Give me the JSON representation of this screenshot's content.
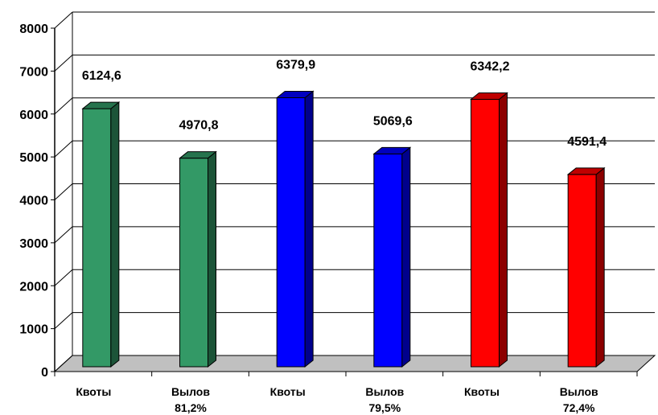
{
  "chart_data": {
    "type": "bar",
    "title": "",
    "xlabel": "",
    "ylabel": "",
    "ylim": [
      0,
      8000
    ],
    "yticks": [
      0,
      1000,
      2000,
      3000,
      4000,
      5000,
      6000,
      7000,
      8000
    ],
    "grid": true,
    "three_d": true,
    "bars": [
      {
        "label": "Квоты",
        "sublabel": "",
        "value": 6124.6,
        "value_label": "6124,6",
        "color": "#339966"
      },
      {
        "label": "Вылов",
        "sublabel": "81,2%",
        "value": 4970.8,
        "value_label": "4970,8",
        "color": "#339966"
      },
      {
        "label": "Квоты",
        "sublabel": "",
        "value": 6379.9,
        "value_label": "6379,9",
        "color": "#0000ff"
      },
      {
        "label": "Вылов",
        "sublabel": "79,5%",
        "value": 5069.6,
        "value_label": "5069,6",
        "color": "#0000ff"
      },
      {
        "label": "Квоты",
        "sublabel": "",
        "value": 6342.2,
        "value_label": "6342,2",
        "color": "#ff0000"
      },
      {
        "label": "Вылов",
        "sublabel": "72,4%",
        "value": 4591.4,
        "value_label": "4591,4",
        "color": "#ff0000"
      }
    ]
  }
}
